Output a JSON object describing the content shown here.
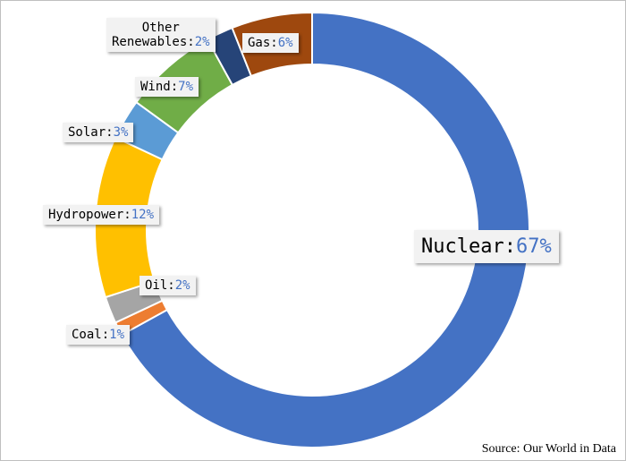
{
  "chart_data": {
    "type": "pie",
    "variant": "donut",
    "slices": [
      {
        "label": "Nuclear",
        "value": 67,
        "display": "67%",
        "color": "#4472c4"
      },
      {
        "label": "Coal",
        "value": 1,
        "display": "1%",
        "color": "#ed7d31"
      },
      {
        "label": "Oil",
        "value": 2,
        "display": "2%",
        "color": "#a5a5a5"
      },
      {
        "label": "Hydropower",
        "value": 12,
        "display": "12%",
        "color": "#ffc000"
      },
      {
        "label": "Solar",
        "value": 3,
        "display": "3%",
        "color": "#5b9bd5"
      },
      {
        "label": "Wind",
        "value": 7,
        "display": "7%",
        "color": "#70ad47"
      },
      {
        "label": "Other Renewables",
        "label_lines": [
          "Other",
          "Renewables"
        ],
        "value": 2,
        "display": "2%",
        "color": "#264478"
      },
      {
        "label": "Gas",
        "value": 6,
        "display": "6%",
        "color": "#9e480e"
      }
    ],
    "separator": ":",
    "start": "top",
    "direction": "clockwise",
    "legend": "none",
    "source": "Source: Our World in Data"
  }
}
